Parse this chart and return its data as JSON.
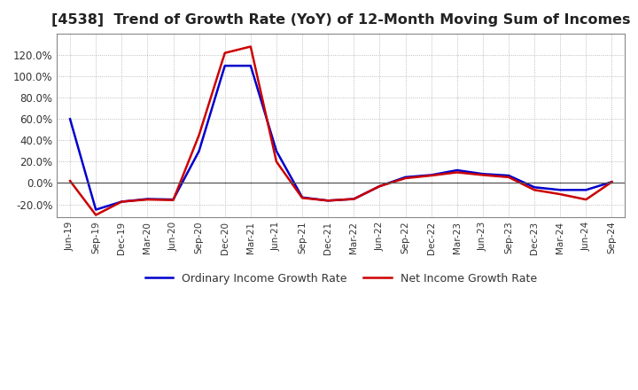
{
  "title": "[4538]  Trend of Growth Rate (YoY) of 12-Month Moving Sum of Incomes",
  "title_fontsize": 11.5,
  "background_color": "#ffffff",
  "grid_color": "#aaaaaa",
  "legend_labels": [
    "Ordinary Income Growth Rate",
    "Net Income Growth Rate"
  ],
  "legend_colors": [
    "#0000cc",
    "#cc0000"
  ],
  "x_labels": [
    "Jun-19",
    "Sep-19",
    "Dec-19",
    "Mar-20",
    "Jun-20",
    "Sep-20",
    "Dec-20",
    "Mar-21",
    "Jun-21",
    "Sep-21",
    "Dec-21",
    "Mar-22",
    "Jun-22",
    "Sep-22",
    "Dec-22",
    "Mar-23",
    "Jun-23",
    "Sep-23",
    "Dec-23",
    "Mar-24",
    "Jun-24",
    "Sep-24"
  ],
  "ordinary_income_growth": [
    0.6,
    -0.25,
    -0.175,
    -0.15,
    -0.155,
    0.3,
    1.1,
    1.1,
    0.3,
    -0.135,
    -0.165,
    -0.15,
    -0.03,
    0.055,
    0.075,
    0.12,
    0.085,
    0.07,
    -0.04,
    -0.065,
    -0.065,
    0.01
  ],
  "net_income_growth": [
    0.02,
    -0.3,
    -0.175,
    -0.155,
    -0.16,
    0.45,
    1.22,
    1.28,
    0.2,
    -0.14,
    -0.165,
    -0.15,
    -0.03,
    0.045,
    0.07,
    0.1,
    0.075,
    0.055,
    -0.065,
    -0.105,
    -0.155,
    0.01
  ],
  "ylim_min": -0.32,
  "ylim_max": 1.4,
  "yticks": [
    -0.2,
    0.0,
    0.2,
    0.4,
    0.6,
    0.8,
    1.0,
    1.2
  ]
}
